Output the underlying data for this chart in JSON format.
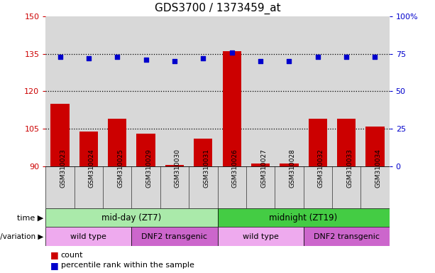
{
  "title": "GDS3700 / 1373459_at",
  "samples": [
    "GSM310023",
    "GSM310024",
    "GSM310025",
    "GSM310029",
    "GSM310030",
    "GSM310031",
    "GSM310026",
    "GSM310027",
    "GSM310028",
    "GSM310032",
    "GSM310033",
    "GSM310034"
  ],
  "bar_values": [
    115,
    104,
    109,
    103,
    90.5,
    101,
    136,
    91,
    91,
    109,
    109,
    106
  ],
  "dot_values": [
    73,
    72,
    73,
    71,
    70,
    72,
    76,
    70,
    70,
    73,
    73,
    73
  ],
  "ylim_left": [
    90,
    150
  ],
  "ylim_right": [
    0,
    100
  ],
  "yticks_left": [
    90,
    105,
    120,
    135,
    150
  ],
  "yticks_right": [
    0,
    25,
    50,
    75,
    100
  ],
  "bar_color": "#cc0000",
  "dot_color": "#0000cc",
  "col_bg_color": "#d8d8d8",
  "time_groups": [
    {
      "label": "mid-day (ZT7)",
      "start": 0,
      "end": 6,
      "color": "#aaeaaa"
    },
    {
      "label": "midnight (ZT19)",
      "start": 6,
      "end": 12,
      "color": "#44cc44"
    }
  ],
  "genotype_groups": [
    {
      "label": "wild type",
      "start": 0,
      "end": 3,
      "color": "#eeaaee"
    },
    {
      "label": "DNF2 transgenic",
      "start": 3,
      "end": 6,
      "color": "#cc66cc"
    },
    {
      "label": "wild type",
      "start": 6,
      "end": 9,
      "color": "#eeaaee"
    },
    {
      "label": "DNF2 transgenic",
      "start": 9,
      "end": 12,
      "color": "#cc66cc"
    }
  ],
  "time_label": "time",
  "genotype_label": "genotype/variation",
  "legend_bar": "count",
  "legend_dot": "percentile rank within the sample",
  "title_fontsize": 11,
  "left_tick_color": "#cc0000",
  "right_tick_color": "#0000cc",
  "hgrid_values": [
    105,
    120,
    135
  ]
}
